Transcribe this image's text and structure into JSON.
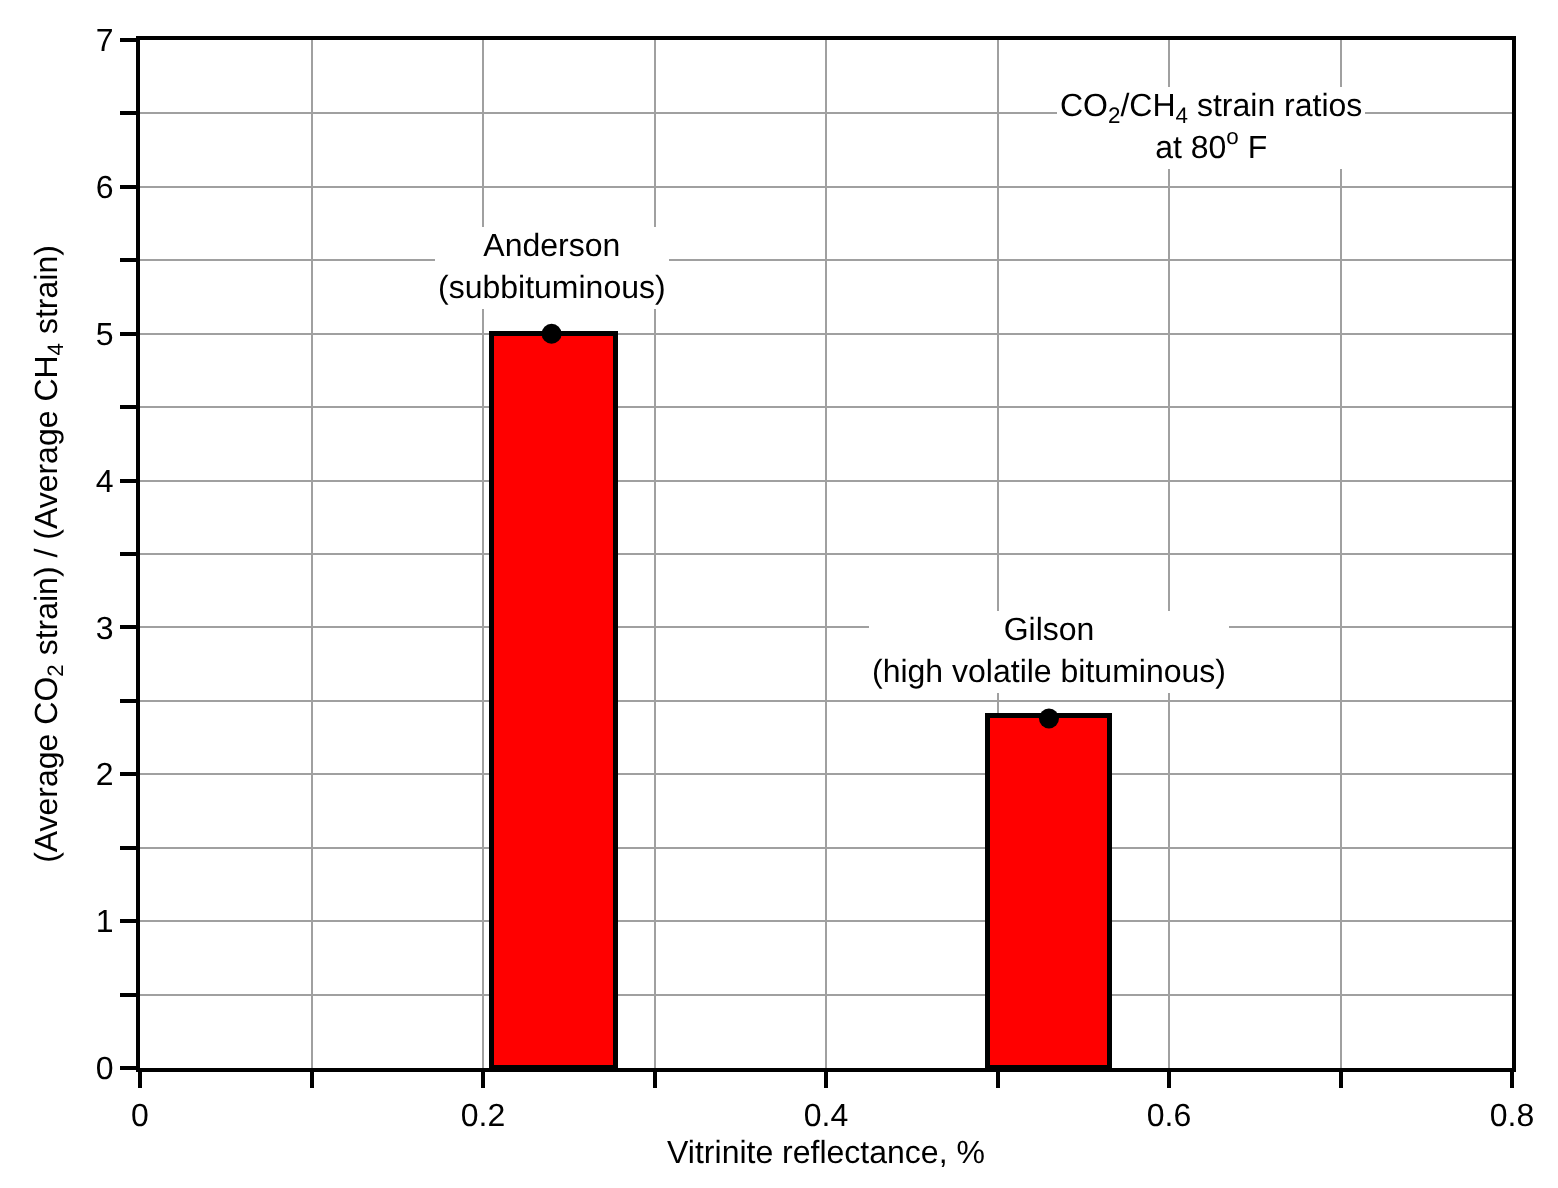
{
  "chart_data": {
    "type": "bar",
    "x": [
      0.241,
      0.53
    ],
    "xlabel": "Vitrinite reflectance, %",
    "ylabel": "(Average CO$_{2}$ strain) / (Average CH$_{4}$ strain)",
    "series": [
      {
        "color": "#ff0000",
        "values": [
          5.0,
          2.4
        ]
      },
      {
        "type": "scatter",
        "color": "#000000",
        "marker": "circle",
        "x": [
          0.24,
          0.53
        ],
        "values": [
          5.0,
          2.38
        ]
      }
    ],
    "annotations": [
      "Anderson\n(subbituminous)",
      "Gilson\n(high volatile bituminous)",
      "CO$_{2}$/CH$_{4}$ strain ratios\nat 80$^{o}$ F"
    ],
    "xlim": [
      0,
      0.8
    ],
    "xticks": [
      0,
      {
        "value": 0.1,
        "label": null
      },
      0.2,
      {
        "value": 0.3,
        "label": null
      },
      0.4,
      {
        "value": 0.5,
        "label": null
      },
      0.6,
      {
        "value": 0.7,
        "label": null
      },
      0.8
    ],
    "ylim": [
      0,
      7
    ],
    "yticks": [
      0,
      {
        "value": 0.5,
        "label": null
      },
      1,
      {
        "value": 1.5,
        "label": null
      },
      2,
      {
        "value": 2.5,
        "label": null
      },
      3,
      {
        "value": 3.5,
        "label": null
      },
      4,
      {
        "value": 4.5,
        "label": null
      },
      5,
      {
        "value": 5.5,
        "label": null
      },
      6,
      {
        "value": 6.5,
        "label": null
      },
      7
    ],
    "grid": true
  }
}
